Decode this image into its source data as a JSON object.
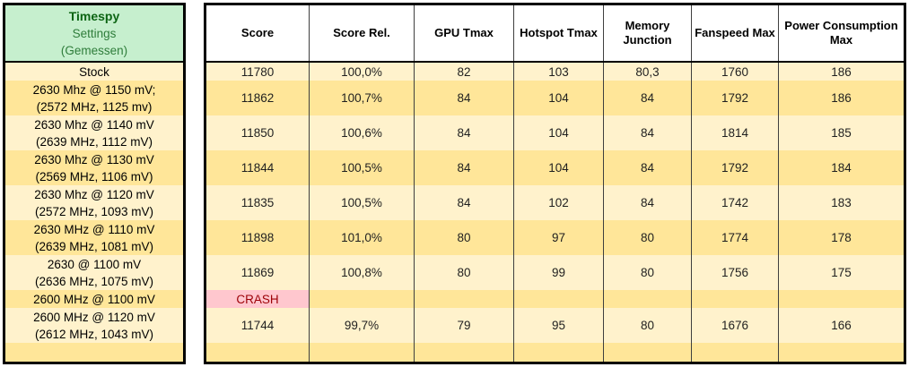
{
  "left_panel": {
    "title_lines": [
      "Timespy",
      "Settings",
      "(Gemessen)"
    ]
  },
  "chart_data": {
    "type": "table",
    "title": "Timespy Settings (Gemessen)",
    "columns": [
      "Score",
      "Score Rel.",
      "GPU Tmax",
      "Hotspot Tmax",
      "Memory Junction",
      "Fanspeed Max",
      "Power Consumption Max"
    ],
    "rows": [
      {
        "setting_lines": [
          "Stock"
        ],
        "values": [
          "11780",
          "100,0%",
          "82",
          "103",
          "80,3",
          "1760",
          "186"
        ]
      },
      {
        "setting_lines": [
          "2630 Mhz @ 1150 mV;",
          "(2572 MHz, 1125 mv)"
        ],
        "values": [
          "11862",
          "100,7%",
          "84",
          "104",
          "84",
          "1792",
          "186"
        ]
      },
      {
        "setting_lines": [
          "2630 Mhz @ 1140 mV",
          "(2639 MHz, 1112 mV)"
        ],
        "values": [
          "11850",
          "100,6%",
          "84",
          "104",
          "84",
          "1814",
          "185"
        ]
      },
      {
        "setting_lines": [
          "2630 Mhz @ 1130 mV",
          "(2569 MHz, 1106 mV)"
        ],
        "values": [
          "11844",
          "100,5%",
          "84",
          "104",
          "84",
          "1792",
          "184"
        ]
      },
      {
        "setting_lines": [
          "2630 Mhz @ 1120 mV",
          "(2572 MHz, 1093 mV)"
        ],
        "values": [
          "11835",
          "100,5%",
          "84",
          "102",
          "84",
          "1742",
          "183"
        ]
      },
      {
        "setting_lines": [
          "2630 MHz @ 1110 mV",
          "(2639 MHz, 1081 mV)"
        ],
        "values": [
          "11898",
          "101,0%",
          "80",
          "97",
          "80",
          "1774",
          "178"
        ]
      },
      {
        "setting_lines": [
          "2630 @ 1100 mV",
          "(2636 MHz, 1075 mV)"
        ],
        "values": [
          "11869",
          "100,8%",
          "80",
          "99",
          "80",
          "1756",
          "175"
        ]
      },
      {
        "setting_lines": [
          "2600 MHz @ 1100 mV"
        ],
        "values": [
          "CRASH",
          "",
          "",
          "",
          "",
          "",
          ""
        ]
      },
      {
        "setting_lines": [
          "2600 MHz @ 1120 mV",
          "(2612 MHz, 1043 mV)"
        ],
        "values": [
          "11744",
          "99,7%",
          "79",
          "95",
          "80",
          "1676",
          "166"
        ]
      }
    ]
  },
  "colors": {
    "header-green-bg": "#C6EFCE",
    "green-title": "#0C6413",
    "green-sub": "#2F7D3B",
    "row-light": "#FFF2CC",
    "row-dark": "#FFE699",
    "crash-bg": "#FFC7CE",
    "crash-text": "#9C0006",
    "grid-line": "#3F3F3F",
    "text-dark": "#1F1F1F"
  }
}
